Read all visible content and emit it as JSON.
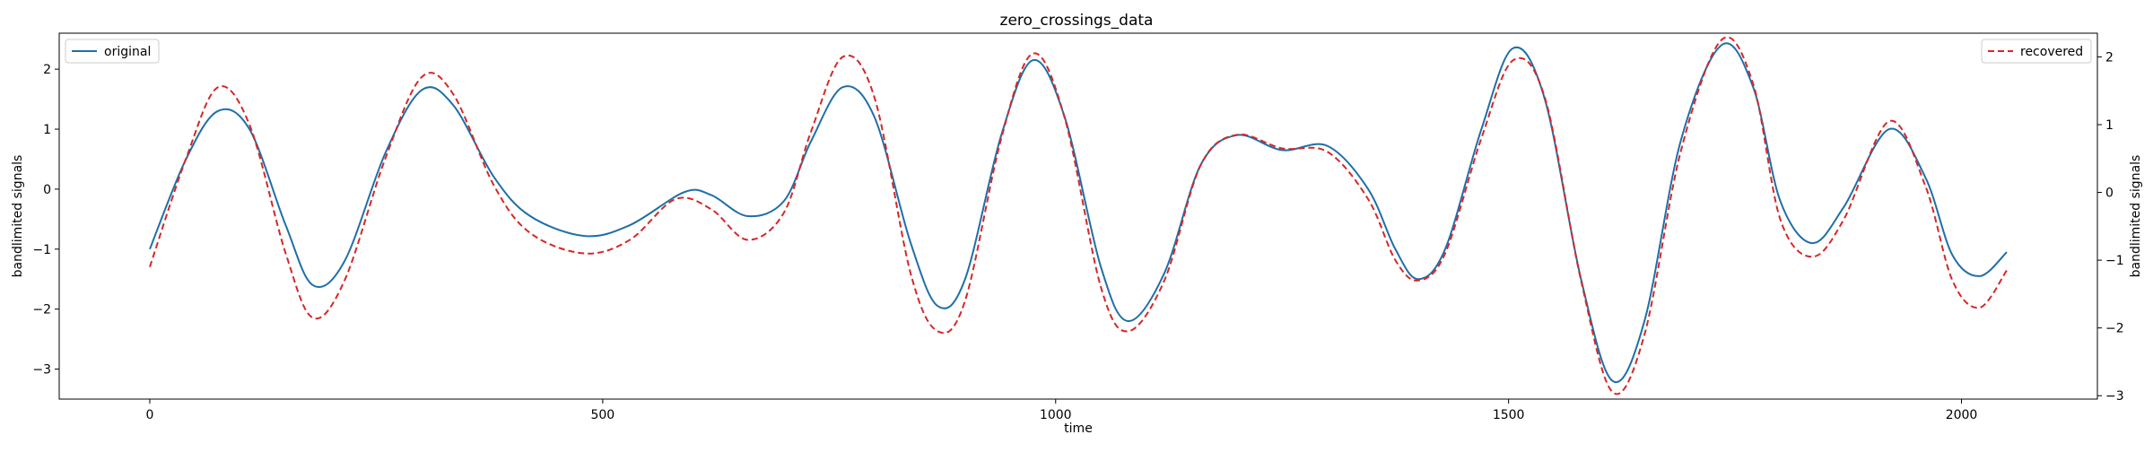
{
  "chart_data": {
    "type": "line",
    "title": "zero_crossings_data",
    "xlabel": "time",
    "ylabel_left": "bandlimited signals",
    "ylabel_right": "bandlimited signals",
    "xlim": [
      -100,
      2150
    ],
    "ylim_left": [
      -3.5,
      2.6
    ],
    "ylim_right": [
      -3.05,
      2.35
    ],
    "x_ticks": [
      0,
      500,
      1000,
      1500,
      2000
    ],
    "x_tick_labels": [
      "0",
      "500",
      "1000",
      "1500",
      "2000"
    ],
    "y_ticks_left": [
      2,
      1,
      0,
      -1,
      -2,
      -3
    ],
    "y_tick_labels_left": [
      "2",
      "1",
      "0",
      "−1",
      "−2",
      "−3"
    ],
    "y_ticks_right": [
      2,
      1,
      0,
      -1,
      -2,
      -3
    ],
    "y_tick_labels_right": [
      "2",
      "1",
      "0",
      "−1",
      "−2",
      "−3"
    ],
    "grid": false,
    "series": [
      {
        "name": "original",
        "axis": "left",
        "color": "#1f6fa8",
        "style": "solid",
        "points": [
          [
            0,
            -1.0
          ],
          [
            40,
            0.5
          ],
          [
            75,
            1.3
          ],
          [
            110,
            1.0
          ],
          [
            150,
            -0.6
          ],
          [
            180,
            -1.6
          ],
          [
            215,
            -1.2
          ],
          [
            260,
            0.6
          ],
          [
            300,
            1.65
          ],
          [
            335,
            1.4
          ],
          [
            380,
            0.2
          ],
          [
            420,
            -0.45
          ],
          [
            480,
            -0.78
          ],
          [
            530,
            -0.6
          ],
          [
            590,
            -0.05
          ],
          [
            620,
            -0.1
          ],
          [
            660,
            -0.45
          ],
          [
            700,
            -0.2
          ],
          [
            730,
            0.8
          ],
          [
            765,
            1.7
          ],
          [
            800,
            1.2
          ],
          [
            840,
            -0.9
          ],
          [
            870,
            -1.95
          ],
          [
            900,
            -1.5
          ],
          [
            940,
            0.9
          ],
          [
            975,
            2.15
          ],
          [
            1010,
            1.2
          ],
          [
            1050,
            -1.3
          ],
          [
            1080,
            -2.2
          ],
          [
            1120,
            -1.4
          ],
          [
            1160,
            0.4
          ],
          [
            1200,
            0.9
          ],
          [
            1250,
            0.65
          ],
          [
            1300,
            0.72
          ],
          [
            1345,
            0.0
          ],
          [
            1375,
            -1.0
          ],
          [
            1400,
            -1.5
          ],
          [
            1430,
            -1.0
          ],
          [
            1470,
            1.0
          ],
          [
            1505,
            2.35
          ],
          [
            1540,
            1.5
          ],
          [
            1580,
            -1.5
          ],
          [
            1615,
            -3.2
          ],
          [
            1650,
            -2.2
          ],
          [
            1690,
            0.8
          ],
          [
            1735,
            2.4
          ],
          [
            1770,
            1.7
          ],
          [
            1800,
            -0.2
          ],
          [
            1835,
            -0.9
          ],
          [
            1870,
            -0.3
          ],
          [
            1920,
            1.0
          ],
          [
            1960,
            0.2
          ],
          [
            1990,
            -1.1
          ],
          [
            2020,
            -1.45
          ],
          [
            2050,
            -1.05
          ]
        ]
      },
      {
        "name": "recovered",
        "axis": "right",
        "color": "#d62728",
        "style": "dashed",
        "points": [
          [
            0,
            -1.1
          ],
          [
            40,
            0.5
          ],
          [
            75,
            1.55
          ],
          [
            110,
            1.0
          ],
          [
            150,
            -0.9
          ],
          [
            180,
            -1.85
          ],
          [
            215,
            -1.3
          ],
          [
            260,
            0.5
          ],
          [
            300,
            1.7
          ],
          [
            335,
            1.45
          ],
          [
            380,
            0.1
          ],
          [
            420,
            -0.6
          ],
          [
            480,
            -0.9
          ],
          [
            530,
            -0.7
          ],
          [
            580,
            -0.1
          ],
          [
            620,
            -0.25
          ],
          [
            660,
            -0.7
          ],
          [
            700,
            -0.3
          ],
          [
            730,
            0.9
          ],
          [
            765,
            2.0
          ],
          [
            800,
            1.4
          ],
          [
            840,
            -1.2
          ],
          [
            870,
            -2.05
          ],
          [
            900,
            -1.6
          ],
          [
            940,
            0.8
          ],
          [
            975,
            2.05
          ],
          [
            1010,
            1.1
          ],
          [
            1050,
            -1.4
          ],
          [
            1080,
            -2.05
          ],
          [
            1120,
            -1.3
          ],
          [
            1160,
            0.4
          ],
          [
            1200,
            0.85
          ],
          [
            1250,
            0.65
          ],
          [
            1300,
            0.6
          ],
          [
            1345,
            -0.1
          ],
          [
            1375,
            -1.0
          ],
          [
            1400,
            -1.3
          ],
          [
            1430,
            -0.9
          ],
          [
            1470,
            0.8
          ],
          [
            1505,
            1.95
          ],
          [
            1540,
            1.4
          ],
          [
            1580,
            -1.3
          ],
          [
            1615,
            -2.95
          ],
          [
            1650,
            -2.1
          ],
          [
            1690,
            0.6
          ],
          [
            1735,
            2.25
          ],
          [
            1770,
            1.6
          ],
          [
            1800,
            -0.4
          ],
          [
            1835,
            -0.95
          ],
          [
            1870,
            -0.4
          ],
          [
            1920,
            1.05
          ],
          [
            1960,
            0.1
          ],
          [
            1990,
            -1.3
          ],
          [
            2020,
            -1.7
          ],
          [
            2050,
            -1.15
          ]
        ]
      }
    ],
    "legend_left": {
      "placement": "top-left",
      "label": "original"
    },
    "legend_right": {
      "placement": "top-right",
      "label": "recovered"
    }
  }
}
